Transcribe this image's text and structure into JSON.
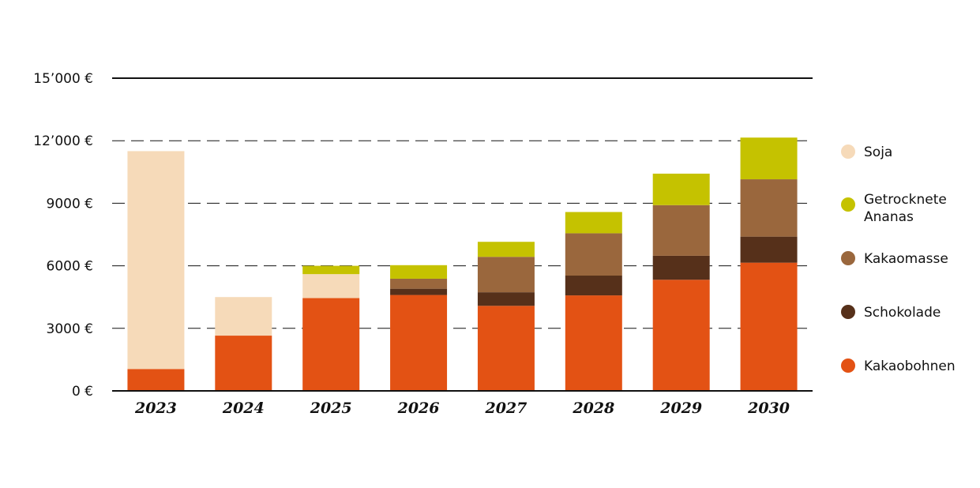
{
  "chart_data": {
    "type": "bar",
    "stacked": true,
    "categories": [
      "2023",
      "2024",
      "2025",
      "2026",
      "2027",
      "2028",
      "2029",
      "2030"
    ],
    "series": [
      {
        "name": "Kakaobohnen",
        "color": "#e35214",
        "values": [
          1050,
          2650,
          4450,
          4600,
          4080,
          4580,
          5330,
          6150
        ]
      },
      {
        "name": "Schokolade",
        "color": "#56301a",
        "values": [
          0,
          0,
          0,
          300,
          650,
          950,
          1150,
          1250
        ]
      },
      {
        "name": "Kakaomasse",
        "color": "#9a673d",
        "values": [
          0,
          0,
          0,
          480,
          1700,
          2030,
          2430,
          2750
        ]
      },
      {
        "name": "Soja",
        "color": "#f6dab9",
        "values": [
          10450,
          1850,
          1150,
          0,
          0,
          0,
          0,
          0
        ]
      },
      {
        "name": "Getrocknete Ananas",
        "color": "#c5c200",
        "values": [
          0,
          0,
          400,
          650,
          720,
          1020,
          1510,
          2000
        ]
      }
    ],
    "y_ticks": [
      "0 €",
      "3000 €",
      "6000 €",
      "9000 €",
      "12’000 €",
      "15’000 €"
    ],
    "y_tick_values": [
      0,
      3000,
      6000,
      9000,
      12000,
      15000
    ],
    "ylim": [
      0,
      15000
    ],
    "grid": "dashed horizontal",
    "legend_position": "right",
    "legend_order": [
      "Soja",
      "Getrocknete Ananas",
      "Kakaomasse",
      "Schokolade",
      "Kakaobohnen"
    ]
  }
}
